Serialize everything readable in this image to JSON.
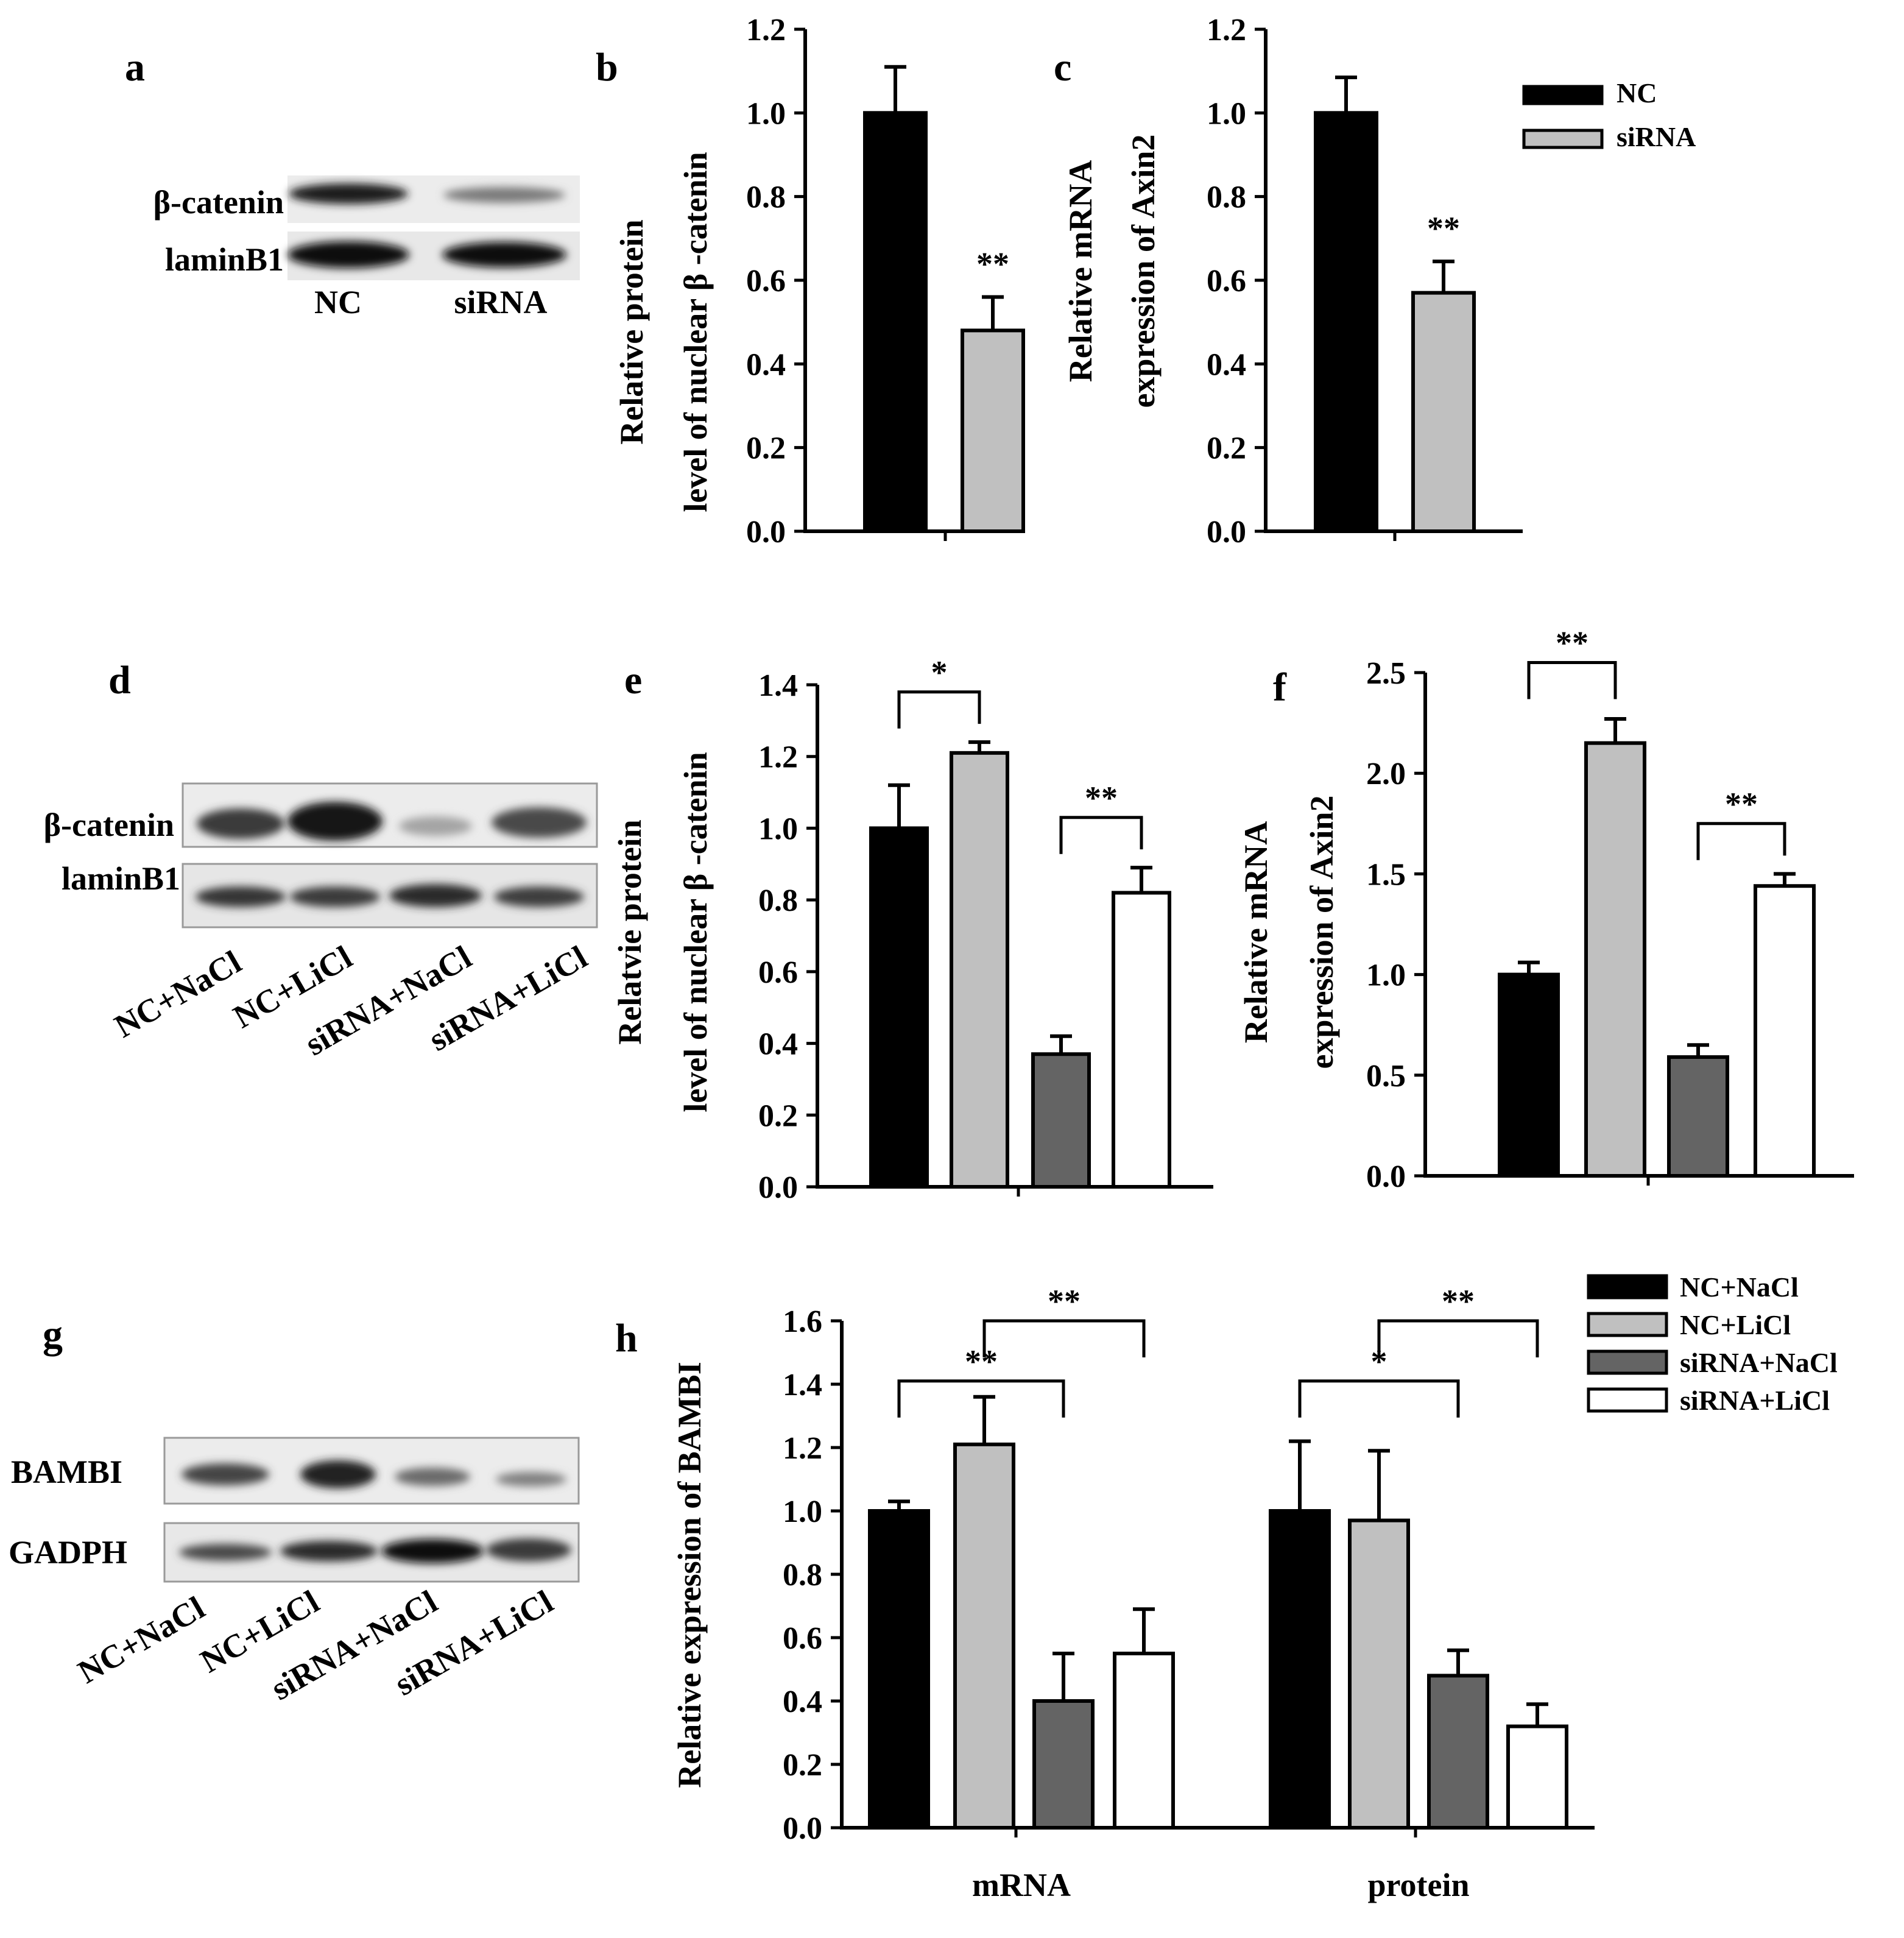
{
  "colors": {
    "NC": "#000000",
    "siRNA": "#c0c0c0",
    "NC+NaCl": "#000000",
    "NC+LiCl": "#c0c0c0",
    "siRNA+NaCl": "#646464",
    "siRNA+LiCl": "#ffffff"
  },
  "panels": {
    "a": {
      "label": "a",
      "rows": [
        "β-catenin",
        "laminB1"
      ],
      "lanes": [
        "NC",
        "siRNA"
      ]
    },
    "d": {
      "label": "d",
      "rows": [
        "β-catenin",
        "laminB1"
      ],
      "lanes": [
        "NC+NaCl",
        "NC+LiCl",
        "siRNA+NaCl",
        "siRNA+LiCl"
      ]
    },
    "g": {
      "label": "g",
      "rows": [
        "BAMBI",
        "GADPH"
      ],
      "lanes": [
        "NC+NaCl",
        "NC+LiCl",
        "siRNA+NaCl",
        "siRNA+LiCl"
      ]
    }
  },
  "chart_data": [
    {
      "id": "b",
      "label": "b",
      "type": "bar",
      "ylabel": [
        "Relative protein",
        "level of nuclear β -catenin"
      ],
      "ylim": [
        0,
        1.2
      ],
      "yticks": [
        "0.0",
        "0.2",
        "0.4",
        "0.6",
        "0.8",
        "1.0",
        "1.2"
      ],
      "categories": [
        ""
      ],
      "series": [
        {
          "name": "NC",
          "values": [
            1.0
          ],
          "errors": [
            0.11
          ]
        },
        {
          "name": "siRNA",
          "values": [
            0.48
          ],
          "errors": [
            0.08
          ]
        }
      ],
      "annotations": [
        {
          "series": 1,
          "text": "**"
        }
      ],
      "sig_brackets": []
    },
    {
      "id": "c",
      "label": "c",
      "type": "bar",
      "ylabel": [
        "Relative mRNA",
        "expression of Axin2"
      ],
      "ylim": [
        0,
        1.2
      ],
      "yticks": [
        "0.0",
        "0.2",
        "0.4",
        "0.6",
        "0.8",
        "1.0",
        "1.2"
      ],
      "categories": [
        ""
      ],
      "series": [
        {
          "name": "NC",
          "values": [
            1.0
          ],
          "errors": [
            0.085
          ]
        },
        {
          "name": "siRNA",
          "values": [
            0.57
          ],
          "errors": [
            0.075
          ]
        }
      ],
      "annotations": [
        {
          "series": 1,
          "text": "**"
        }
      ],
      "sig_brackets": []
    },
    {
      "id": "e",
      "label": "e",
      "type": "bar",
      "ylabel": [
        "Relatvie protein",
        "level of nuclear β -catenin"
      ],
      "ylim": [
        0,
        1.4
      ],
      "yticks": [
        "0.0",
        "0.2",
        "0.4",
        "0.6",
        "0.8",
        "1.0",
        "1.2",
        "1.4"
      ],
      "categories": [
        ""
      ],
      "series": [
        {
          "name": "NC+NaCl",
          "values": [
            1.0
          ],
          "errors": [
            0.12
          ]
        },
        {
          "name": "NC+LiCl",
          "values": [
            1.21
          ],
          "errors": [
            0.03
          ]
        },
        {
          "name": "siRNA+NaCl",
          "values": [
            0.37
          ],
          "errors": [
            0.05
          ]
        },
        {
          "name": "siRNA+LiCl",
          "values": [
            0.82
          ],
          "errors": [
            0.07
          ]
        }
      ],
      "annotations": [],
      "sig_brackets": [
        {
          "from": 0,
          "to": 1,
          "y": 1.38,
          "text": "*"
        },
        {
          "from": 2,
          "to": 3,
          "y": 1.03,
          "text": "**"
        }
      ]
    },
    {
      "id": "f",
      "label": "f",
      "type": "bar",
      "ylabel": [
        "Relative mRNA",
        "expression of Axin2"
      ],
      "ylim": [
        0,
        2.5
      ],
      "yticks": [
        "0.0",
        "0.5",
        "1.0",
        "1.5",
        "2.0",
        "2.5"
      ],
      "categories": [
        ""
      ],
      "series": [
        {
          "name": "NC+NaCl",
          "values": [
            1.0
          ],
          "errors": [
            0.06
          ]
        },
        {
          "name": "NC+LiCl",
          "values": [
            2.15
          ],
          "errors": [
            0.12
          ]
        },
        {
          "name": "siRNA+NaCl",
          "values": [
            0.59
          ],
          "errors": [
            0.06
          ]
        },
        {
          "name": "siRNA+LiCl",
          "values": [
            1.44
          ],
          "errors": [
            0.06
          ]
        }
      ],
      "annotations": [],
      "sig_brackets": [
        {
          "from": 0,
          "to": 1,
          "y": 2.55,
          "text": "**"
        },
        {
          "from": 2,
          "to": 3,
          "y": 1.75,
          "text": "**"
        }
      ]
    },
    {
      "id": "h",
      "label": "h",
      "type": "bar",
      "ylabel": [
        "Relative expression of BAMBI"
      ],
      "ylim": [
        0,
        1.6
      ],
      "yticks": [
        "0.0",
        "0.2",
        "0.4",
        "0.6",
        "0.8",
        "1.0",
        "1.2",
        "1.4",
        "1.6"
      ],
      "categories": [
        "mRNA",
        "protein"
      ],
      "series": [
        {
          "name": "NC+NaCl",
          "values": [
            1.0,
            1.0
          ],
          "errors": [
            0.03,
            0.22
          ]
        },
        {
          "name": "NC+LiCl",
          "values": [
            1.21,
            0.97
          ],
          "errors": [
            0.15,
            0.22
          ]
        },
        {
          "name": "siRNA+NaCl",
          "values": [
            0.4,
            0.48
          ],
          "errors": [
            0.15,
            0.08
          ]
        },
        {
          "name": "siRNA+LiCl",
          "values": [
            0.55,
            0.32
          ],
          "errors": [
            0.14,
            0.07
          ]
        }
      ],
      "annotations": [],
      "sig_brackets": [
        {
          "category": 0,
          "from": 0,
          "to": 2,
          "y": 1.41,
          "text": "**"
        },
        {
          "category": 0,
          "from": 1,
          "to": 3,
          "y": 1.6,
          "text": "**"
        },
        {
          "category": 1,
          "from": 0,
          "to": 2,
          "y": 1.41,
          "text": "*"
        },
        {
          "category": 1,
          "from": 1,
          "to": 3,
          "y": 1.6,
          "text": "**"
        }
      ]
    }
  ],
  "legends": {
    "top": [
      "NC",
      "siRNA"
    ],
    "bottom": [
      "NC+NaCl",
      "NC+LiCl",
      "siRNA+NaCl",
      "siRNA+LiCl"
    ]
  }
}
